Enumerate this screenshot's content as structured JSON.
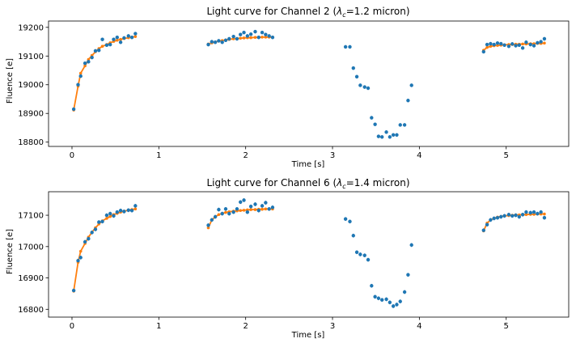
{
  "figure": {
    "colors": {
      "data": "#1f77b4",
      "model": "#ff7f0e"
    }
  },
  "chart_data": [
    {
      "type": "scatter",
      "title_prefix": "Light curve for Channel 2 (",
      "title_lambda": "λ",
      "title_sub": "c",
      "title_suffix": "=1.2 micron)",
      "xlabel": "Time [s]",
      "ylabel": "Fluence [e]",
      "xlim": [
        -0.27,
        5.72
      ],
      "ylim": [
        18785,
        19222
      ],
      "xticks": [
        0,
        1,
        2,
        3,
        4,
        5
      ],
      "yticks": [
        18800,
        18900,
        19000,
        19100,
        19200
      ],
      "yerr": 6,
      "series": [
        {
          "role": "data",
          "x": [
            0.02,
            0.07,
            0.1,
            0.15,
            0.19,
            0.23,
            0.27,
            0.31,
            0.35,
            0.4,
            0.44,
            0.48,
            0.52,
            0.56,
            0.6,
            0.65,
            0.69,
            0.73,
            1.57,
            1.61,
            1.65,
            1.69,
            1.73,
            1.77,
            1.81,
            1.86,
            1.9,
            1.94,
            1.98,
            2.02,
            2.06,
            2.11,
            2.15,
            2.19,
            2.23,
            2.27,
            2.31,
            3.15,
            3.2,
            3.24,
            3.28,
            3.32,
            3.37,
            3.41,
            3.45,
            3.49,
            3.53,
            3.57,
            3.62,
            3.66,
            3.7,
            3.74,
            3.78,
            3.83,
            3.87,
            3.91,
            4.74,
            4.78,
            4.82,
            4.86,
            4.9,
            4.94,
            4.98,
            5.03,
            5.07,
            5.11,
            5.15,
            5.19,
            5.23,
            5.28,
            5.32,
            5.36,
            5.4,
            5.44
          ],
          "y": [
            18915,
            19000,
            19030,
            19075,
            19080,
            19095,
            19118,
            19120,
            19158,
            19138,
            19140,
            19158,
            19165,
            19148,
            19163,
            19170,
            19165,
            19178,
            19140,
            19150,
            19148,
            19153,
            19148,
            19155,
            19160,
            19168,
            19160,
            19175,
            19182,
            19170,
            19176,
            19185,
            19165,
            19182,
            19175,
            19170,
            19165,
            19132,
            19132,
            19058,
            19028,
            18998,
            18992,
            18988,
            18885,
            18862,
            18820,
            18818,
            18835,
            18818,
            18825,
            18825,
            18860,
            18860,
            18945,
            18998,
            19115,
            19140,
            19143,
            19140,
            19145,
            19143,
            19138,
            19134,
            19142,
            19136,
            19138,
            19128,
            19148,
            19140,
            19136,
            19146,
            19150,
            19160
          ]
        },
        {
          "role": "model",
          "x": [
            0.02,
            0.07,
            0.1,
            0.15,
            0.19,
            0.23,
            0.27,
            0.31,
            0.35,
            0.4,
            0.44,
            0.48,
            0.52,
            0.56,
            0.6,
            0.65,
            0.69,
            0.73,
            1.57,
            1.61,
            1.65,
            1.69,
            1.73,
            1.77,
            1.81,
            1.86,
            1.9,
            1.94,
            1.98,
            2.02,
            2.06,
            2.11,
            2.15,
            2.19,
            2.23,
            2.27,
            2.31,
            4.74,
            4.78,
            4.82,
            4.86,
            4.9,
            4.94,
            4.98,
            5.03,
            5.07,
            5.11,
            5.15,
            5.19,
            5.23,
            5.28,
            5.32,
            5.36,
            5.4,
            5.44
          ],
          "y": [
            18912,
            18995,
            19040,
            19066,
            19088,
            19102,
            19115,
            19126,
            19134,
            19140,
            19146,
            19151,
            19155,
            19158,
            19161,
            19164,
            19166,
            19168,
            19142,
            19146,
            19149,
            19152,
            19154,
            19156,
            19158,
            19160,
            19161,
            19162,
            19163,
            19164,
            19164,
            19165,
            19165,
            19166,
            19166,
            19166,
            19166,
            19120,
            19130,
            19134,
            19136,
            19137,
            19138,
            19139,
            19140,
            19140,
            19141,
            19141,
            19142,
            19142,
            19143,
            19143,
            19144,
            19144,
            19145
          ]
        }
      ]
    },
    {
      "type": "scatter",
      "title_prefix": "Light curve for Channel 6 (",
      "title_lambda": "λ",
      "title_sub": "c",
      "title_suffix": "=1.4 micron)",
      "xlabel": "Time [s]",
      "ylabel": "Fluence [e]",
      "xlim": [
        -0.27,
        5.72
      ],
      "ylim": [
        16775,
        17175
      ],
      "xticks": [
        0,
        1,
        2,
        3,
        4,
        5
      ],
      "yticks": [
        16800,
        16900,
        17000,
        17100
      ],
      "yerr": 6,
      "series": [
        {
          "role": "data",
          "x": [
            0.02,
            0.07,
            0.1,
            0.15,
            0.19,
            0.23,
            0.27,
            0.31,
            0.35,
            0.4,
            0.44,
            0.48,
            0.52,
            0.56,
            0.6,
            0.65,
            0.69,
            0.73,
            1.57,
            1.61,
            1.65,
            1.69,
            1.73,
            1.77,
            1.81,
            1.86,
            1.9,
            1.94,
            1.98,
            2.02,
            2.06,
            2.11,
            2.15,
            2.19,
            2.23,
            2.27,
            2.31,
            3.15,
            3.2,
            3.24,
            3.28,
            3.32,
            3.37,
            3.41,
            3.45,
            3.49,
            3.53,
            3.57,
            3.62,
            3.66,
            3.7,
            3.74,
            3.78,
            3.83,
            3.87,
            3.91,
            4.74,
            4.78,
            4.82,
            4.86,
            4.9,
            4.94,
            4.98,
            5.03,
            5.07,
            5.11,
            5.15,
            5.19,
            5.23,
            5.28,
            5.32,
            5.36,
            5.4,
            5.44
          ],
          "y": [
            16860,
            16955,
            16965,
            17015,
            17025,
            17045,
            17055,
            17078,
            17080,
            17100,
            17105,
            17098,
            17110,
            17115,
            17112,
            17116,
            17115,
            17130,
            17068,
            17085,
            17095,
            17118,
            17105,
            17120,
            17105,
            17110,
            17120,
            17142,
            17148,
            17110,
            17128,
            17135,
            17115,
            17130,
            17140,
            17120,
            17125,
            17088,
            17080,
            17035,
            16982,
            16975,
            16972,
            16958,
            16875,
            16840,
            16835,
            16830,
            16832,
            16822,
            16810,
            16815,
            16825,
            16855,
            16910,
            17005,
            17052,
            17070,
            17085,
            17090,
            17092,
            17095,
            17098,
            17102,
            17098,
            17100,
            17095,
            17102,
            17110,
            17108,
            17110,
            17105,
            17110,
            17092
          ]
        },
        {
          "role": "model",
          "x": [
            0.02,
            0.07,
            0.1,
            0.15,
            0.19,
            0.23,
            0.27,
            0.31,
            0.35,
            0.4,
            0.44,
            0.48,
            0.52,
            0.56,
            0.6,
            0.65,
            0.69,
            0.73,
            1.57,
            1.61,
            1.65,
            1.69,
            1.73,
            1.77,
            1.81,
            1.86,
            1.9,
            1.94,
            1.98,
            2.02,
            2.06,
            2.11,
            2.15,
            2.19,
            2.23,
            2.27,
            2.31,
            4.74,
            4.78,
            4.82,
            4.86,
            4.9,
            4.94,
            4.98,
            5.03,
            5.07,
            5.11,
            5.15,
            5.19,
            5.23,
            5.28,
            5.32,
            5.36,
            5.4,
            5.44
          ],
          "y": [
            16858,
            16950,
            16985,
            17010,
            17030,
            17046,
            17060,
            17072,
            17082,
            17090,
            17096,
            17102,
            17106,
            17110,
            17113,
            17116,
            17118,
            17120,
            17060,
            17085,
            17095,
            17102,
            17106,
            17109,
            17111,
            17113,
            17114,
            17115,
            17116,
            17117,
            17118,
            17118,
            17119,
            17119,
            17120,
            17120,
            17120,
            17050,
            17075,
            17085,
            17090,
            17094,
            17096,
            17098,
            17099,
            17100,
            17101,
            17101,
            17102,
            17102,
            17103,
            17103,
            17104,
            17104,
            17104
          ]
        }
      ]
    }
  ]
}
